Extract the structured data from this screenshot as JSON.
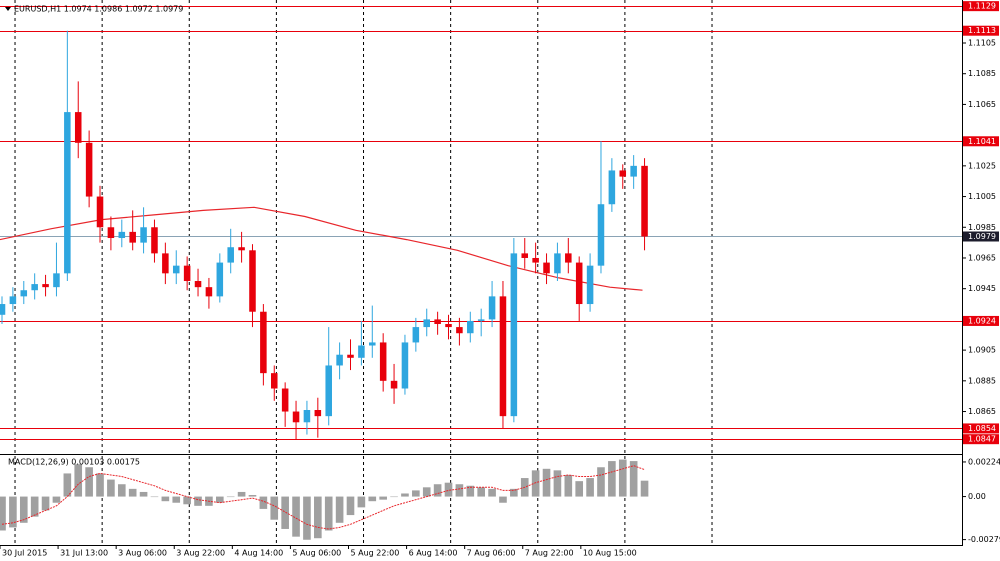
{
  "chart_data": [
    {
      "type": "candlestick",
      "title": "EURUSD,H1  1.0974 1.0986 1.0972 1.0979",
      "x": [
        0,
        3,
        6,
        9,
        12,
        15,
        18,
        21,
        24,
        27,
        30,
        33,
        36,
        39,
        42,
        45,
        48,
        51,
        54,
        57,
        60,
        63,
        66,
        69,
        72,
        75,
        78,
        81,
        84,
        87,
        90,
        93,
        96,
        99,
        102,
        105,
        108,
        111,
        114,
        117,
        120,
        123,
        126,
        129,
        132,
        135,
        138,
        141,
        144,
        147,
        150,
        153,
        156,
        159,
        162,
        165,
        168,
        171,
        174,
        177
      ],
      "open": [
        1.0928,
        1.0935,
        1.094,
        1.0944,
        1.0948,
        1.0946,
        1.0955,
        1.106,
        1.104,
        1.1005,
        1.0985,
        1.0978,
        1.0982,
        1.0975,
        1.0985,
        1.0968,
        1.0955,
        1.096,
        1.095,
        1.0946,
        1.094,
        1.0962,
        1.0972,
        1.097,
        1.093,
        1.089,
        1.088,
        1.0865,
        1.0858,
        1.0866,
        1.0862,
        1.0895,
        1.0902,
        1.09,
        1.0908,
        1.091,
        1.0885,
        1.088,
        1.091,
        1.092,
        1.0925,
        1.0922,
        1.092,
        1.0916,
        1.0924,
        1.0925,
        1.094,
        1.0862,
        1.0968,
        1.0965,
        1.0962,
        1.0955,
        1.0968,
        1.0962,
        1.0935,
        1.096,
        1.1,
        1.1022,
        1.1018,
        1.1025
      ],
      "high": [
        1.094,
        1.0946,
        1.095,
        1.0955,
        1.0954,
        1.0975,
        1.1113,
        1.108,
        1.1048,
        1.1012,
        1.0992,
        1.099,
        1.0996,
        1.0998,
        1.099,
        1.0975,
        1.097,
        1.0966,
        1.0958,
        1.0952,
        1.0968,
        1.0984,
        1.0982,
        1.0974,
        1.0935,
        1.0895,
        1.0884,
        1.0872,
        1.0872,
        1.0874,
        1.092,
        1.091,
        1.0912,
        1.0924,
        1.0934,
        1.0916,
        1.0896,
        1.0915,
        1.0926,
        1.0932,
        1.093,
        1.0928,
        1.0926,
        1.093,
        1.0932,
        1.095,
        1.095,
        1.0978,
        1.0978,
        1.0975,
        1.0968,
        1.0975,
        1.0978,
        1.0966,
        1.0968,
        1.1041,
        1.103,
        1.1026,
        1.1032,
        1.103
      ],
      "low": [
        1.0922,
        1.093,
        1.0935,
        1.0938,
        1.094,
        1.094,
        1.095,
        1.103,
        1.0998,
        1.0975,
        1.097,
        1.0972,
        1.097,
        1.0968,
        1.0962,
        1.0948,
        1.0948,
        1.0944,
        1.094,
        1.0932,
        1.0936,
        1.0955,
        1.0962,
        1.092,
        1.0882,
        1.0872,
        1.0855,
        1.0847,
        1.085,
        1.0848,
        1.0856,
        1.0886,
        1.0892,
        1.0895,
        1.09,
        1.0878,
        1.087,
        1.0876,
        1.0904,
        1.0914,
        1.0915,
        1.0912,
        1.0908,
        1.091,
        1.0914,
        1.092,
        1.0854,
        1.0858,
        1.0958,
        1.0955,
        1.0948,
        1.095,
        1.0955,
        1.0924,
        1.093,
        1.0955,
        1.0995,
        1.101,
        1.101,
        1.097
      ],
      "close": [
        1.0935,
        1.094,
        1.0944,
        1.0948,
        1.0946,
        1.0955,
        1.106,
        1.104,
        1.1005,
        1.0985,
        1.0978,
        1.0982,
        1.0975,
        1.0985,
        1.0968,
        1.0955,
        1.096,
        1.095,
        1.0946,
        1.094,
        1.0962,
        1.0972,
        1.097,
        1.093,
        1.089,
        1.088,
        1.0865,
        1.0858,
        1.0866,
        1.0862,
        1.0895,
        1.0902,
        1.09,
        1.0908,
        1.091,
        1.0885,
        1.088,
        1.091,
        1.092,
        1.0925,
        1.0922,
        1.092,
        1.0916,
        1.0924,
        1.0925,
        1.094,
        1.0862,
        1.0968,
        1.0965,
        1.0962,
        1.0955,
        1.0968,
        1.0962,
        1.0935,
        1.096,
        1.1,
        1.1022,
        1.1018,
        1.1025,
        1.0979
      ],
      "up_color": "#2ea6df",
      "down_color": "#e8000b",
      "line": {
        "color": "#e8262b",
        "x": [
          0,
          14,
          28,
          42,
          56,
          70,
          84,
          98,
          112,
          126,
          140,
          154,
          168,
          177
        ],
        "values": [
          1.0977,
          1.0984,
          1.099,
          1.0993,
          1.0996,
          1.0998,
          1.0992,
          1.0983,
          1.0977,
          1.097,
          1.096,
          1.0952,
          1.0946,
          1.0944
        ]
      },
      "levels": [
        1.1129,
        1.1113,
        1.1041,
        1.0924,
        1.0854,
        1.0847
      ],
      "level_color": "#e8000b",
      "bid": 1.0979,
      "bid_color": "#8aa3b5",
      "xlim": [
        0,
        265
      ],
      "ylim": [
        1.0838,
        1.1133
      ],
      "yticks": [
        1.1105,
        1.1085,
        1.1065,
        1.1025,
        1.1005,
        1.0985,
        1.0965,
        1.0945,
        1.0905,
        1.0885,
        1.0865
      ],
      "xticks": [
        {
          "value": 0,
          "label": "30 Jul 2015"
        },
        {
          "value": 16,
          "label": "31 Jul 13:00"
        },
        {
          "value": 32,
          "label": "3 Aug 06:00"
        },
        {
          "value": 48,
          "label": "3 Aug 22:00"
        },
        {
          "value": 64,
          "label": "4 Aug 14:00"
        },
        {
          "value": 80,
          "label": "5 Aug 06:00"
        },
        {
          "value": 96,
          "label": "5 Aug 22:00"
        },
        {
          "value": 112,
          "label": "6 Aug 14:00"
        },
        {
          "value": 128,
          "label": "7 Aug 06:00"
        },
        {
          "value": 144,
          "label": "7 Aug 22:00"
        },
        {
          "value": 160,
          "label": "10 Aug 15:00"
        }
      ],
      "day_separators": [
        4,
        28,
        52,
        76,
        100,
        124,
        148,
        172,
        196
      ]
    },
    {
      "type": "macd",
      "title": "MACD(12,26,9) 0.00103 0.00175",
      "x": [
        0,
        3,
        6,
        9,
        12,
        15,
        18,
        21,
        24,
        27,
        30,
        33,
        36,
        39,
        42,
        45,
        48,
        51,
        54,
        57,
        60,
        63,
        66,
        69,
        72,
        75,
        78,
        81,
        84,
        87,
        90,
        93,
        96,
        99,
        102,
        105,
        108,
        111,
        114,
        117,
        120,
        123,
        126,
        129,
        132,
        135,
        138,
        141,
        144,
        147,
        150,
        153,
        156,
        159,
        162,
        165,
        168,
        171,
        174,
        177
      ],
      "values": [
        -0.0022,
        -0.002,
        -0.0017,
        -0.0013,
        -0.0009,
        -0.0004,
        0.0015,
        0.0021,
        0.0019,
        0.0015,
        0.0011,
        0.0008,
        0.0005,
        0.0003,
        0,
        -0.0003,
        -0.0004,
        -0.0005,
        -0.0006,
        -0.0006,
        -0.0004,
        0,
        0.0003,
        0.0001,
        -0.0008,
        -0.0015,
        -0.0021,
        -0.0026,
        -0.0028,
        -0.0027,
        -0.0022,
        -0.0017,
        -0.0012,
        -0.0007,
        -0.0003,
        -0.0002,
        0,
        0.0002,
        0.0004,
        0.0006,
        0.0008,
        0.0009,
        0.0008,
        0.0007,
        0.0006,
        0.0005,
        -0.0004,
        0.0005,
        0.0012,
        0.0017,
        0.0018,
        0.0017,
        0.0014,
        0.001,
        0.0012,
        0.0019,
        0.0023,
        0.0024,
        0.0023,
        0.00103
      ],
      "color": "#a0a0a0",
      "signal": {
        "color": "#e8262b",
        "values": [
          -0.0018,
          -0.0017,
          -0.0015,
          -0.0012,
          -0.0009,
          -0.0006,
          0,
          0.0008,
          0.0013,
          0.0015,
          0.0014,
          0.0013,
          0.0011,
          0.0009,
          0.0007,
          0.0004,
          0.0002,
          0,
          -0.0002,
          -0.0003,
          -0.0004,
          -0.0003,
          -0.0002,
          -0.0001,
          -0.0003,
          -0.0006,
          -0.001,
          -0.0014,
          -0.0018,
          -0.002,
          -0.0021,
          -0.002,
          -0.0018,
          -0.0015,
          -0.0012,
          -0.0009,
          -0.0006,
          -0.0004,
          -0.0002,
          0,
          0.0002,
          0.0004,
          0.0005,
          0.0006,
          0.0006,
          0.0006,
          0.0004,
          0.0004,
          0.0006,
          0.0009,
          0.0011,
          0.0013,
          0.0014,
          0.0013,
          0.0013,
          0.0014,
          0.0016,
          0.0018,
          0.002,
          0.00175
        ]
      },
      "ylim": [
        -0.00314,
        0.00263
      ],
      "yticks": [
        0.002244,
        {
          "value": 0,
          "label": "0.00"
        },
        -0.00279
      ]
    }
  ]
}
